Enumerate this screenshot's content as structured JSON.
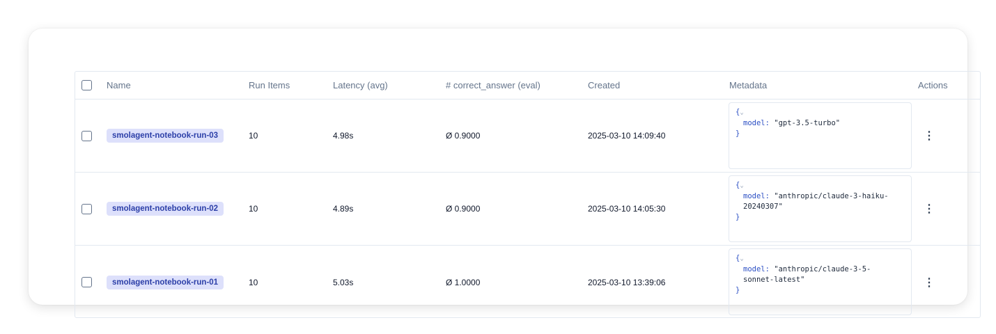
{
  "columns": [
    "Name",
    "Run Items",
    "Latency (avg)",
    "# correct_answer (eval)",
    "Created",
    "Metadata",
    "Actions"
  ],
  "rows": [
    {
      "name": "smolagent-notebook-run-03",
      "run_items": "10",
      "latency": "4.98s",
      "correct": "Ø 0.9000",
      "created": "2025-03-10 14:09:40",
      "meta_key": "model:",
      "meta_lines": [
        "\"gpt-3.5-turbo\""
      ]
    },
    {
      "name": "smolagent-notebook-run-02",
      "run_items": "10",
      "latency": "4.89s",
      "correct": "Ø 0.9000",
      "created": "2025-03-10 14:05:30",
      "meta_key": "model:",
      "meta_lines": [
        "\"anthropic/claude-3-haiku-",
        "20240307\""
      ]
    },
    {
      "name": "smolagent-notebook-run-01",
      "run_items": "10",
      "latency": "5.03s",
      "correct": "Ø 1.0000",
      "created": "2025-03-10 13:39:06",
      "meta_key": "model:",
      "meta_lines": [
        "\"anthropic/claude-3-5-",
        "sonnet-latest\""
      ]
    }
  ],
  "json_open": "{",
  "json_close": "}",
  "chevron": "⌄",
  "actions_icon": "⋮",
  "colors": {
    "badge_bg": "#dde0fb",
    "badge_text": "#2c3fa8",
    "json_key": "#2b4fc4"
  }
}
